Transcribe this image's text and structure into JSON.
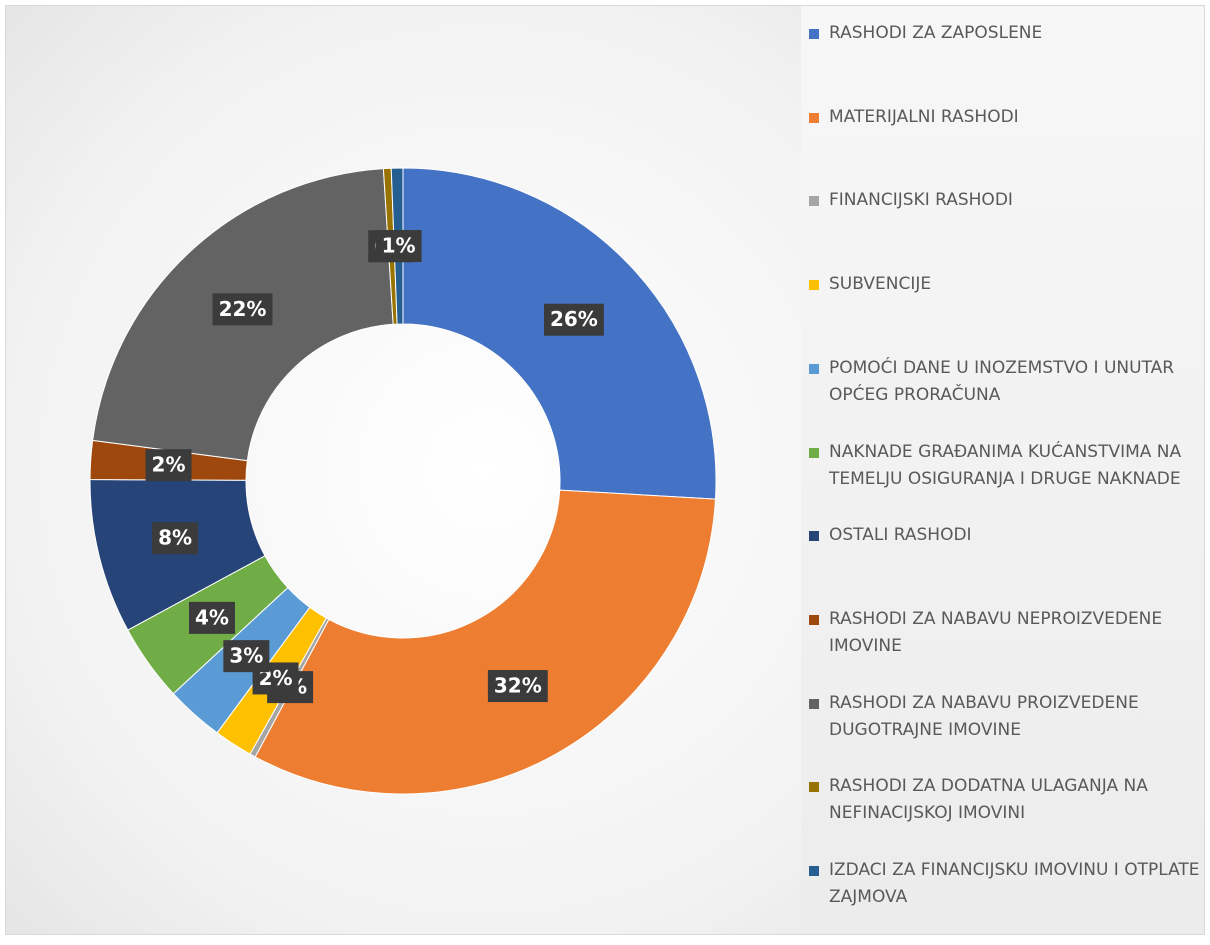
{
  "chart_data": {
    "type": "donut",
    "categories": [
      "RASHODI ZA ZAPOSLENE",
      "MATERIJALNI RASHODI",
      "FINANCIJSKI RASHODI",
      "SUBVENCIJE",
      "POMOĆI DANE U INOZEMSTVO I UNUTAR OPĆEG PRORAČUNA",
      "NAKNADE GRAĐANIMA KUĆANSTVIMA NA TEMELJU OSIGURANJA I DRUGE NAKNADE",
      "OSTALI RASHODI",
      "RASHODI ZA NABAVU NEPROIZVEDENE IMOVINE",
      "RASHODI ZA NABAVU PROIZVEDENE DUGOTRAJNE IMOVINE",
      "RASHODI ZA DODATNA ULAGANJA NA NEFINACIJSKOJ IMOVINI",
      "IZDACI ZA FINANCIJSKU IMOVINU I OTPLATE ZAJMOVA"
    ],
    "values": [
      26,
      32,
      0.3,
      2,
      3,
      4,
      8,
      2,
      22,
      0.4,
      0.6
    ],
    "value_labels": [
      "26%",
      "32%",
      "0%",
      "2%",
      "3%",
      "4%",
      "8%",
      "2%",
      "22%",
      "0%",
      "1%"
    ],
    "colors": [
      "#4472c4",
      "#ed7d31",
      "#a5a5a5",
      "#ffc000",
      "#5b9bd5",
      "#70ad47",
      "#264478",
      "#9e480e",
      "#636363",
      "#997300",
      "#255e91"
    ],
    "legend": "right"
  }
}
